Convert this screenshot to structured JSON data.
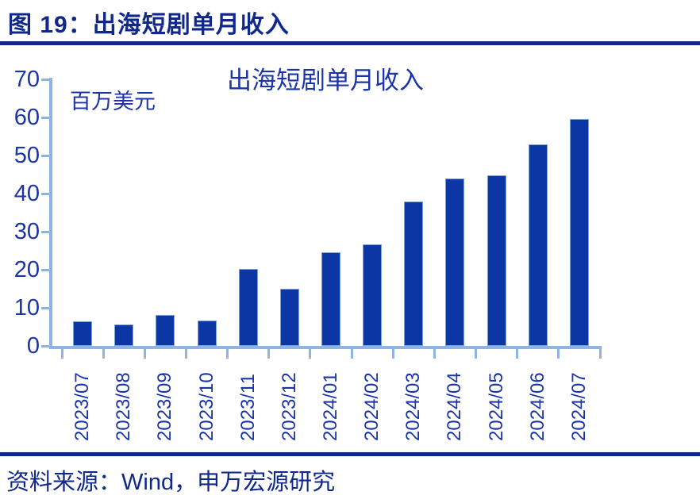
{
  "figure": {
    "caption": "图 19：出海短剧单月收入"
  },
  "chart": {
    "title": "出海短剧单月收入",
    "unit_label": "百万美元"
  },
  "chart_data": {
    "type": "bar",
    "title": "出海短剧单月收入",
    "xlabel": "",
    "ylabel": "百万美元",
    "categories": [
      "2023/07",
      "2023/08",
      "2023/09",
      "2023/10",
      "2023/11",
      "2023/12",
      "2024/01",
      "2024/02",
      "2024/03",
      "2024/04",
      "2024/05",
      "2024/06",
      "2024/07"
    ],
    "values": [
      6.4,
      5.6,
      8.1,
      6.6,
      20.2,
      15.0,
      24.6,
      26.7,
      37.9,
      44.0,
      44.8,
      53.0,
      59.6
    ],
    "ylim": [
      0,
      70
    ],
    "yticks": [
      0,
      10,
      20,
      30,
      40,
      50,
      60,
      70
    ],
    "grid": false,
    "legend_position": "none"
  },
  "footer": {
    "source_text": "资料来源：Wind，申万宏源研究"
  },
  "colors": {
    "heading_navy": "#10288C",
    "label_blue": "#1B34A8",
    "bar_fill": "#0B36A3",
    "axis_light": "#8DB4E2",
    "background": "#FFFFFF"
  }
}
